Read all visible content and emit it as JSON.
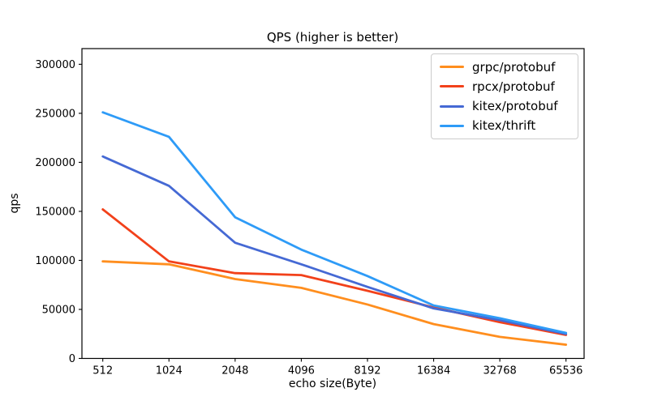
{
  "figure": {
    "title": "QPS (higher is better)",
    "xlabel": "echo size(Byte)",
    "ylabel": "qps"
  },
  "legend": {
    "entries": [
      "grpc/protobuf",
      "rpcx/protobuf",
      "kitex/protobuf",
      "kitex/thrift"
    ]
  },
  "colors": {
    "grpc_protobuf": "#FF8E1E",
    "rpcx_protobuf": "#F2411A",
    "kitex_protobuf": "#4569D4",
    "kitex_thrift": "#2E9BF7",
    "axis": "#000000",
    "legend_border": "#cccccc"
  },
  "chart_data": {
    "type": "line",
    "title": "QPS (higher is better)",
    "xlabel": "echo size(Byte)",
    "ylabel": "qps",
    "categories": [
      "512",
      "1024",
      "2048",
      "4096",
      "8192",
      "16384",
      "32768",
      "65536"
    ],
    "series": [
      {
        "name": "grpc/protobuf",
        "color": "#FF8E1E",
        "values": [
          99000,
          96000,
          81000,
          72000,
          55000,
          35000,
          22000,
          14000
        ]
      },
      {
        "name": "rpcx/protobuf",
        "color": "#F2411A",
        "values": [
          152000,
          99000,
          87000,
          85000,
          69000,
          52000,
          37000,
          24000
        ]
      },
      {
        "name": "kitex/protobuf",
        "color": "#4569D4",
        "values": [
          206000,
          176000,
          118000,
          96000,
          73000,
          51000,
          39000,
          25000
        ]
      },
      {
        "name": "kitex/thrift",
        "color": "#2E9BF7",
        "values": [
          251000,
          226000,
          144000,
          111000,
          84000,
          54000,
          41000,
          26000
        ]
      }
    ],
    "y_ticks": [
      0,
      50000,
      100000,
      150000,
      200000,
      250000,
      300000
    ],
    "ylim": [
      0,
      316000
    ],
    "grid": false,
    "legend_position": "upper right"
  }
}
